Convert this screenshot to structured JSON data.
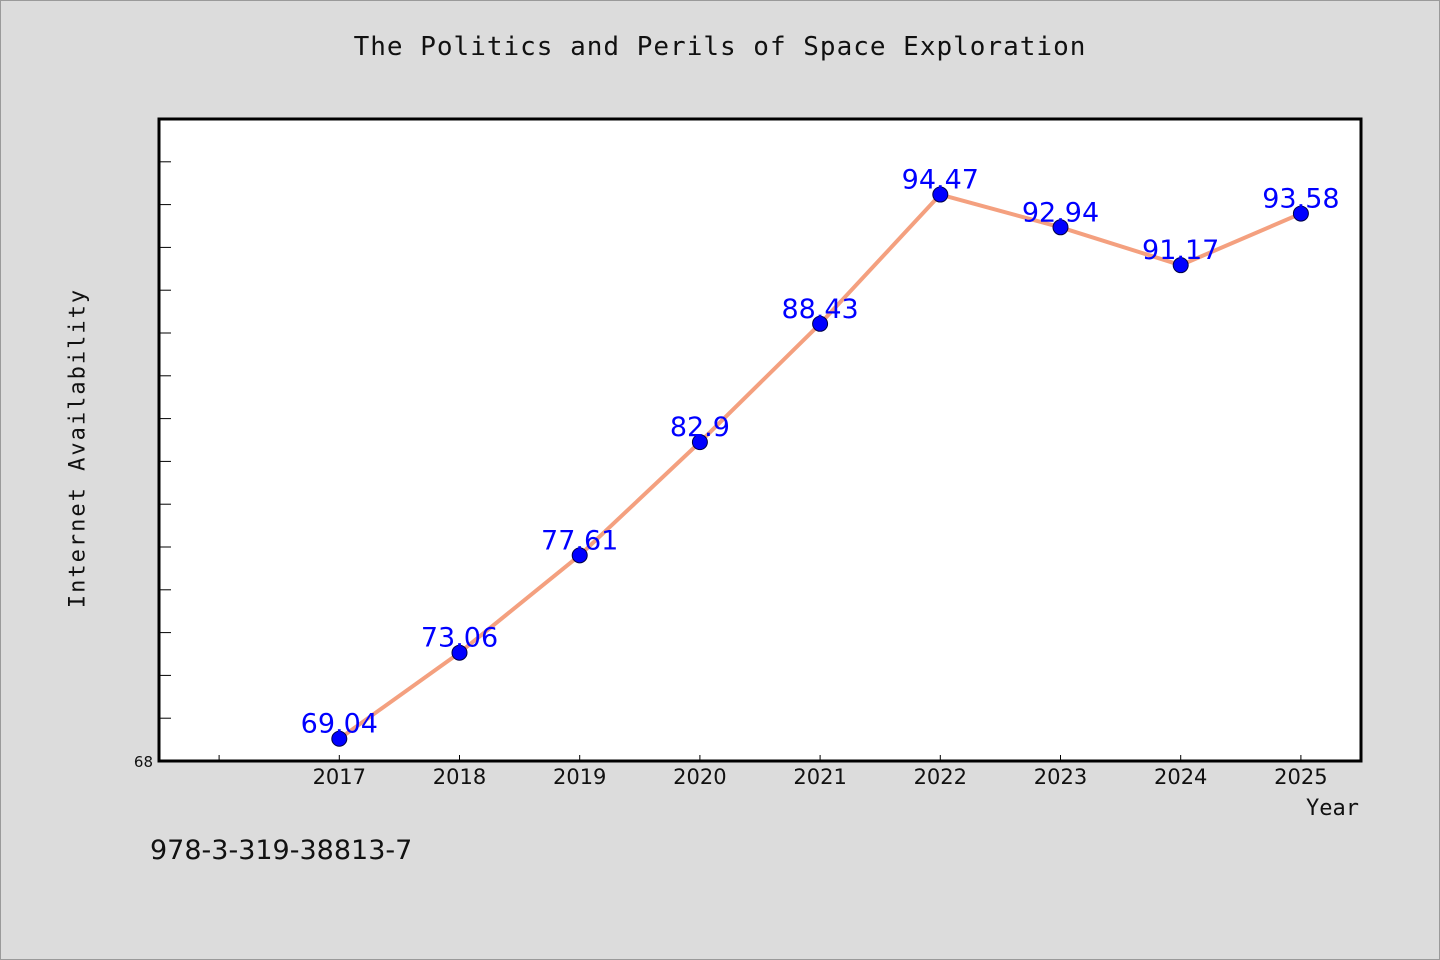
{
  "chart_data": {
    "type": "line",
    "title": "The Politics and Perils of Space Exploration",
    "xlabel": "Year",
    "ylabel": "Internet Availability",
    "x": [
      "2017",
      "2018",
      "2019",
      "2020",
      "2021",
      "2022",
      "2023",
      "2024",
      "2025"
    ],
    "series": [
      {
        "values": [
          69.04,
          73.06,
          77.61,
          82.9,
          88.43,
          94.47,
          92.94,
          91.17,
          93.58
        ],
        "labels": [
          "69.04",
          "73.06",
          "77.61",
          "82.9",
          "88.43",
          "94.47",
          "92.94",
          "91.17",
          "93.58"
        ],
        "color": "#f4a07f",
        "marker_color": "#0000ff"
      }
    ],
    "ylim": [
      68,
      98
    ],
    "y_tick_labels": [
      "68"
    ],
    "grid": false,
    "label_color": "#0000ff"
  },
  "footer": {
    "code": "978-3-319-38813-7"
  },
  "colors": {
    "background": "#dcdcdc",
    "plot_background": "#ffffff",
    "line": "#f4a07f",
    "marker": "#0000ff",
    "label": "#0000ff"
  }
}
